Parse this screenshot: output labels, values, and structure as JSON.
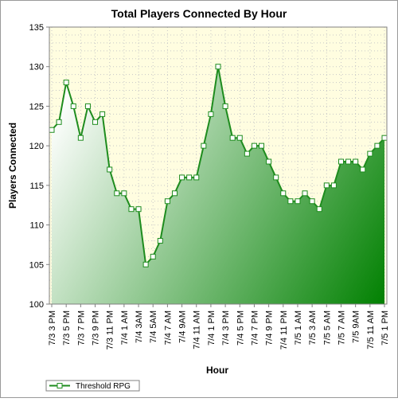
{
  "chart_data": {
    "type": "area",
    "title": "Total Players Connected By Hour",
    "xlabel": "Hour",
    "ylabel": "Players Connected",
    "ylim": [
      100,
      135
    ],
    "yticks": [
      100,
      105,
      110,
      115,
      120,
      125,
      130,
      135
    ],
    "grid": true,
    "legend_placement": "bottom-left",
    "colors": {
      "line": "#1e8c1e",
      "fill_light": "#ffffff",
      "fill_dark": "#008000",
      "plot_bg": "#fffde0",
      "grid": "#c8c8c8",
      "marker_fill": "#ffffff"
    },
    "x_tick_labels": [
      "7/3 3 PM",
      "7/3 5 PM",
      "7/3 7 PM",
      "7/3 9 PM",
      "7/3 11 PM",
      "7/4 1 AM",
      "7/4 3AM",
      "7/4 5AM",
      "7/4 7 AM",
      "7/4 9AM",
      "7/4 11 AM",
      "7/4 1 PM",
      "7/4 3 PM",
      "7/4 5 PM",
      "7/4 7 PM",
      "7/4 9 PM",
      "7/4 11 PM",
      "7/5 1 AM",
      "7/5 3 AM",
      "7/5 5 AM",
      "7/5 7 AM",
      "7/5 9AM",
      "7/5 11 AM",
      "7/5 1 PM"
    ],
    "series": [
      {
        "name": "Threshold RPG",
        "values": [
          122,
          123,
          128,
          125,
          121,
          125,
          123,
          124,
          117,
          114,
          114,
          112,
          112,
          105,
          106,
          108,
          113,
          114,
          116,
          116,
          116,
          120,
          124,
          130,
          125,
          121,
          121,
          119,
          120,
          120,
          118,
          116,
          114,
          113,
          113,
          114,
          113,
          112,
          115,
          115,
          118,
          118,
          118,
          117,
          119,
          120,
          121
        ]
      }
    ]
  }
}
